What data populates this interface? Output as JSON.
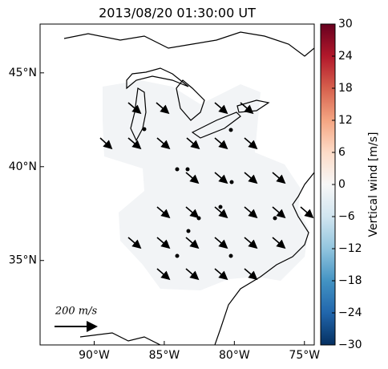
{
  "title": "2013/08/20 01:30:00 UT",
  "map": {
    "xlim": [
      -93.86,
      -74.3
    ],
    "ylim": [
      30.5,
      47.6
    ],
    "xticks": [
      {
        "value": -90,
        "label": "90°W"
      },
      {
        "value": -85,
        "label": "85°W"
      },
      {
        "value": -80,
        "label": "80°W"
      },
      {
        "value": -75,
        "label": "75°W"
      }
    ],
    "yticks": [
      {
        "value": 35,
        "label": "35°N"
      },
      {
        "value": 40,
        "label": "40°N"
      },
      {
        "value": 45,
        "label": "45°N"
      }
    ],
    "scale_label": "200 m/s"
  },
  "colorbar": {
    "label": "Vertical wind [m/s]",
    "lim": [
      -30,
      30
    ],
    "ticks": [
      {
        "value": -30,
        "label": "−30"
      },
      {
        "value": -24,
        "label": "−24"
      },
      {
        "value": -18,
        "label": "−18"
      },
      {
        "value": -12,
        "label": "−12"
      },
      {
        "value": -6,
        "label": "−6"
      },
      0,
      6,
      12,
      18,
      24,
      30
    ]
  }
}
